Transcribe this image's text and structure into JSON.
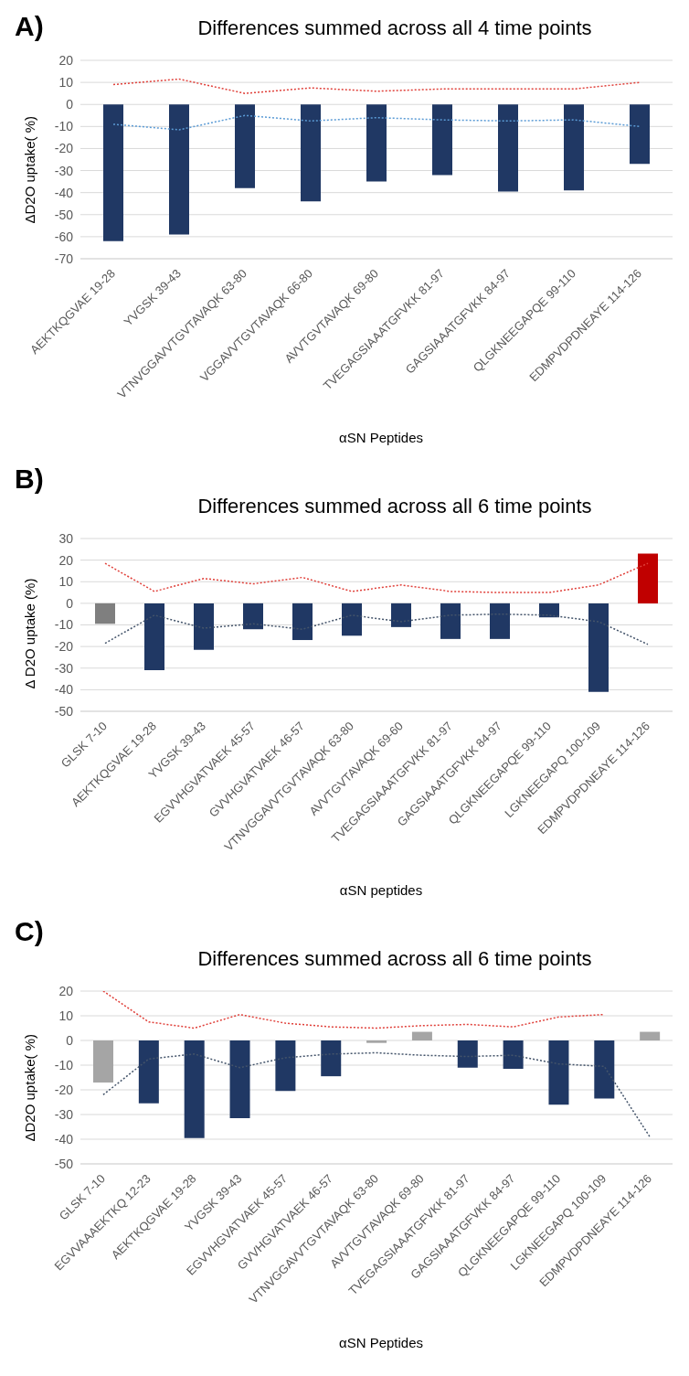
{
  "chart_data": [
    {
      "type": "bar",
      "title": "Differences summed across all 4 time points",
      "xlabel": "αSN Peptides",
      "ylabel": "ΔD2O uptake( %)",
      "annotations": [
        "A)"
      ],
      "categories": [
        "AEKTKQGVAE 19-28",
        "YVGSK 39-43",
        "VTNVGGAVVTGVTAVAQK 63-80",
        "VGGAVVTGVTAVAQK 66-80",
        "AVVTGVTAVAQK 69-80",
        "TVEGAGSIAAATGFVKK 81-97",
        "GAGSIAAATGFVKK 84-97",
        "QLGKNEEGAPQE 99-110",
        "EDMPVDPDNEAYE 114-126"
      ],
      "series": [
        {
          "color": "#203864",
          "colors": [
            "#203864",
            "#203864",
            "#203864",
            "#203864",
            "#203864",
            "#203864",
            "#203864",
            "#203864",
            "#203864"
          ],
          "values": [
            -62,
            -59,
            -38,
            -44,
            -35,
            -32,
            -39.5,
            -39,
            -27
          ]
        },
        {
          "type": "line",
          "color": "#e0403a",
          "line_style": "dotted",
          "values": [
            9,
            11.5,
            5,
            7.5,
            6,
            7,
            7,
            7,
            10
          ]
        },
        {
          "type": "line",
          "color": "#5b9bd5",
          "line_style": "dotted",
          "values": [
            -9,
            -11.5,
            -5,
            -7.5,
            -6,
            -7,
            -7.5,
            -7,
            -10
          ]
        }
      ],
      "ylim": [
        -70,
        20
      ],
      "yticks": [
        -70,
        -60,
        -50,
        -40,
        -30,
        -20,
        -10,
        0,
        10,
        20
      ],
      "grid": "y",
      "legend": false,
      "marker": "none"
    },
    {
      "type": "bar",
      "title": "Differences summed across all 6 time points",
      "xlabel": "αSN peptides",
      "ylabel": "Δ D2O uptake (%)",
      "annotations": [
        "B)"
      ],
      "categories": [
        "GLSK 7-10",
        "AEKTKQGVAE 19-28",
        "YVGSK 39-43",
        "EGVVHGVATVAEK 45-57",
        "GVVHGVATVAEK 46-57",
        "VTNVGGAVVTGVTAVAQK 63-80",
        "AVVTGVTAVAQK 69-60",
        "TVEGAGSIAAATGFVKK 81-97",
        "GAGSIAAATGFVKK 84-97",
        "QLGKNEEGAPQE 99-110",
        "LGKNEEGAPQ 100-109",
        "EDMPVDPDNEAYE 114-126"
      ],
      "series": [
        {
          "color": "#203864",
          "colors": [
            "#7f7f7f",
            "#203864",
            "#203864",
            "#203864",
            "#203864",
            "#203864",
            "#203864",
            "#203864",
            "#203864",
            "#203864",
            "#203864",
            "#c00000"
          ],
          "values": [
            -9.5,
            -31,
            -21.5,
            -12,
            -17,
            -15,
            -11,
            -16.5,
            -16.5,
            -6.5,
            -41,
            23
          ]
        },
        {
          "type": "line",
          "color": "#e0403a",
          "line_style": "dotted",
          "values": [
            18.5,
            5.5,
            11.5,
            9,
            12,
            5.5,
            8.5,
            5.5,
            5,
            5,
            8.5,
            18.5
          ]
        },
        {
          "type": "line",
          "color": "#44546a",
          "line_style": "dotted",
          "values": [
            -18.5,
            -5.5,
            -11.5,
            -9.5,
            -12,
            -5.5,
            -8.5,
            -5.5,
            -5,
            -5.5,
            -8.5,
            -19
          ]
        }
      ],
      "ylim": [
        -50,
        30
      ],
      "yticks": [
        -50,
        -40,
        -30,
        -20,
        -10,
        0,
        10,
        20,
        30
      ],
      "grid": "y",
      "legend": false,
      "marker": "none"
    },
    {
      "type": "bar",
      "title": "Differences summed across all 6 time points",
      "xlabel": "αSN Peptides",
      "ylabel": "ΔD2O uptake( %)",
      "annotations": [
        "C)"
      ],
      "categories": [
        "GLSK 7-10",
        "EGVVAAAEKTKQ 12-23",
        "AEKTKQGVAE 19-28",
        "YVGSK 39-43",
        "EGVVHGVATVAEK 45-57",
        "GVVHGVATVAEK 46-57",
        "VTNVGGAVVTGVTAVAQK 63-80",
        "AVVTGVTAVAQK 69-80",
        "TVEGAGSIAAATGFVKK 81-97",
        "GAGSIAAATGFVKK 84-97",
        "QLGKNEEGAPQE 99-110",
        "LGKNEEGAPQ 100-109",
        "EDMPVDPDNEAYE 114-126"
      ],
      "series": [
        {
          "color": "#203864",
          "colors": [
            "#a5a5a5",
            "#203864",
            "#203864",
            "#203864",
            "#203864",
            "#203864",
            "#a5a5a5",
            "#a5a5a5",
            "#203864",
            "#203864",
            "#203864",
            "#203864",
            "#a5a5a5"
          ],
          "values": [
            -17,
            -25.5,
            -39.5,
            -31.5,
            -20.5,
            -14.5,
            -1,
            3.5,
            -11,
            -11.5,
            -26,
            -23.5,
            3.5
          ]
        },
        {
          "type": "line",
          "color": "#e0403a",
          "line_style": "dotted",
          "values": [
            20,
            7.5,
            5,
            10.5,
            7,
            5.5,
            5,
            6,
            6.5,
            5.5,
            9.5,
            10.5,
            null
          ]
        },
        {
          "type": "line",
          "color": "#44546a",
          "line_style": "dotted",
          "values": [
            -22,
            -7.5,
            -5.5,
            -11,
            -7,
            -5.5,
            -5,
            -6,
            -6.5,
            -6,
            -9.5,
            -10.5,
            -39
          ]
        }
      ],
      "ylim": [
        -50,
        20
      ],
      "yticks": [
        -50,
        -40,
        -30,
        -20,
        -10,
        0,
        10,
        20
      ],
      "grid": "y",
      "legend": false,
      "marker": "none"
    }
  ]
}
